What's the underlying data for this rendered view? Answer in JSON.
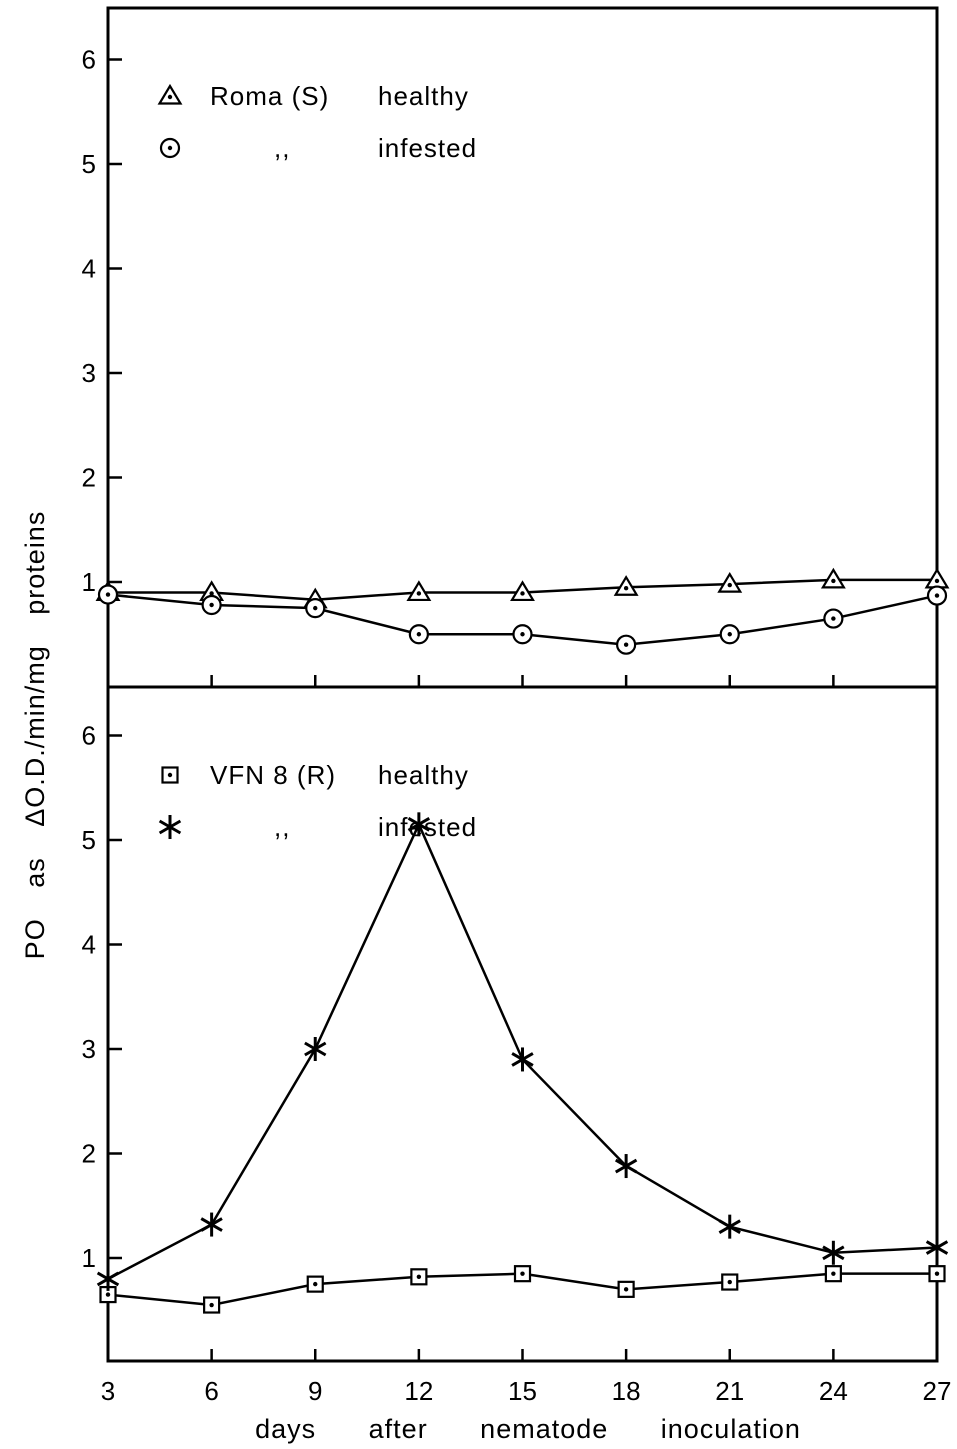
{
  "chart_data": [
    {
      "type": "line",
      "panel": "top",
      "x": [
        3,
        6,
        9,
        12,
        15,
        18,
        21,
        24,
        27
      ],
      "ylim": [
        0,
        6.5
      ],
      "yticks": [
        1,
        2,
        3,
        4,
        5,
        6
      ],
      "ytick_labels": [
        "1",
        "2",
        "3",
        "4",
        "5",
        "6"
      ],
      "series": [
        {
          "name": "Roma (S)",
          "label2": "healthy",
          "marker": "triangle",
          "values": [
            0.9,
            0.9,
            0.83,
            0.9,
            0.9,
            0.95,
            0.98,
            1.02,
            1.02
          ]
        },
        {
          "name": ",,",
          "label2": "infested",
          "marker": "circle",
          "values": [
            0.88,
            0.78,
            0.75,
            0.5,
            0.5,
            0.4,
            0.5,
            0.65,
            0.87
          ]
        }
      ]
    },
    {
      "type": "line",
      "panel": "bottom",
      "x": [
        3,
        6,
        9,
        12,
        15,
        18,
        21,
        24,
        27
      ],
      "ylim": [
        0,
        6.5
      ],
      "yticks": [
        1,
        2,
        3,
        4,
        5,
        6
      ],
      "ytick_labels": [
        "1",
        "2",
        "3",
        "4",
        "5",
        "6"
      ],
      "series": [
        {
          "name": "VFN 8 (R)",
          "label2": "healthy",
          "marker": "square",
          "values": [
            0.65,
            0.55,
            0.75,
            0.82,
            0.85,
            0.7,
            0.77,
            0.85,
            0.85
          ]
        },
        {
          "name": ",,",
          "label2": "infested",
          "marker": "asterisk",
          "values": [
            0.8,
            1.32,
            3.0,
            5.15,
            2.9,
            1.88,
            1.3,
            1.05,
            1.1
          ]
        }
      ]
    }
  ],
  "xlabel": "days after nematode inoculation",
  "xtick_labels": [
    "3",
    "6",
    "9",
    "12",
    "15",
    "18",
    "21",
    "24",
    "27"
  ],
  "ylabel": "PO as ΔO.D./min/mg proteins"
}
